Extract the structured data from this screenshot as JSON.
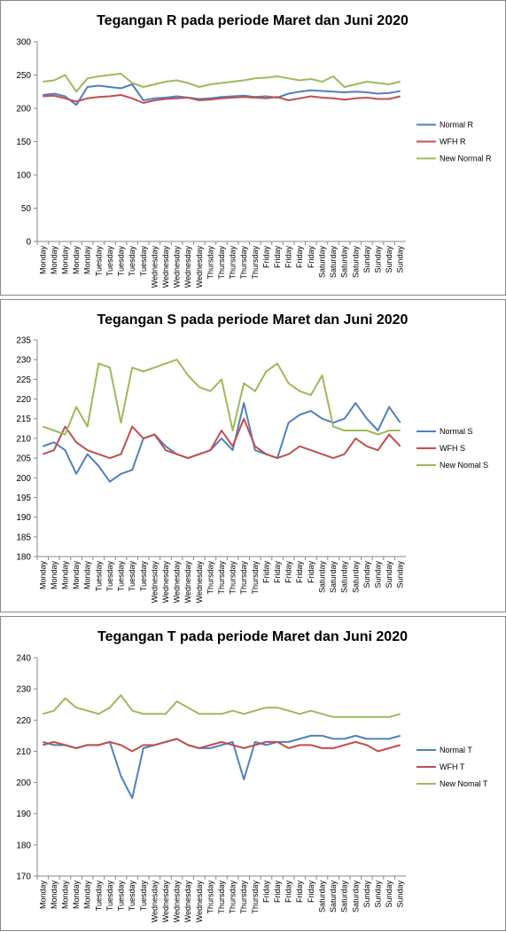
{
  "chart_data": [
    {
      "type": "line",
      "title": "Tegangan R pada periode Maret dan Juni 2020",
      "categories": [
        "Monday",
        "Monday",
        "Monday",
        "Monday",
        "Monday",
        "Tuesday",
        "Tuesday",
        "Tuesday",
        "Tuesday",
        "Tuesday",
        "Wednesday",
        "Wednesday",
        "Wednesday",
        "Wednesday",
        "Wednesday",
        "Thursday",
        "Thursday",
        "Thursday",
        "Thursday",
        "Thursday",
        "Friday",
        "Friday",
        "Friday",
        "Friday",
        "Friday",
        "Saturday",
        "Saturday",
        "Saturday",
        "Saturday",
        "Sunday",
        "Sunday",
        "Sunday",
        "Sunday"
      ],
      "series": [
        {
          "name": "Normal R",
          "color": "#4f81bd",
          "values": [
            220,
            222,
            218,
            205,
            232,
            234,
            232,
            230,
            236,
            212,
            215,
            216,
            218,
            216,
            214,
            215,
            217,
            218,
            219,
            217,
            218,
            216,
            222,
            225,
            227,
            226,
            225,
            224,
            225,
            224,
            222,
            223,
            226
          ]
        },
        {
          "name": "WFH R",
          "color": "#c0504d",
          "values": [
            218,
            219,
            215,
            210,
            215,
            217,
            218,
            220,
            215,
            208,
            212,
            214,
            215,
            216,
            212,
            213,
            215,
            216,
            217,
            216,
            215,
            217,
            212,
            215,
            218,
            216,
            215,
            213,
            215,
            216,
            214,
            214,
            218
          ]
        },
        {
          "name": "New Normal R",
          "color": "#9bbb59",
          "values": [
            240,
            242,
            250,
            225,
            245,
            248,
            250,
            252,
            238,
            232,
            236,
            240,
            242,
            238,
            232,
            236,
            238,
            240,
            242,
            245,
            246,
            248,
            245,
            242,
            244,
            240,
            248,
            232,
            236,
            240,
            238,
            236,
            240
          ]
        }
      ],
      "ylim": [
        0,
        300
      ],
      "yticks": [
        0,
        50,
        100,
        150,
        200,
        250,
        300
      ],
      "grid": false,
      "legend": "right"
    },
    {
      "type": "line",
      "title": "Tegangan S pada periode Maret dan Juni 2020",
      "categories": [
        "Monday",
        "Monday",
        "Monday",
        "Monday",
        "Monday",
        "Tuesday",
        "Tuesday",
        "Tuesday",
        "Tuesday",
        "Tuesday",
        "Wednesday",
        "Wednesday",
        "Wednesday",
        "Wednesday",
        "Wednesday",
        "Thursday",
        "Thursday",
        "Thursday",
        "Thursday",
        "Thursday",
        "Friday",
        "Friday",
        "Friday",
        "Friday",
        "Friday",
        "Saturday",
        "Saturday",
        "Saturday",
        "Saturday",
        "Sunday",
        "Sunday",
        "Sunday",
        "Sunday"
      ],
      "series": [
        {
          "name": "Normal S",
          "color": "#4f81bd",
          "values": [
            208,
            209,
            207,
            201,
            206,
            203,
            199,
            201,
            202,
            210,
            211,
            208,
            206,
            205,
            206,
            207,
            210,
            207,
            219,
            207,
            206,
            205,
            214,
            216,
            217,
            215,
            214,
            215,
            219,
            215,
            212,
            218,
            214
          ]
        },
        {
          "name": "WFH S",
          "color": "#c0504d",
          "values": [
            206,
            207,
            213,
            209,
            207,
            206,
            205,
            206,
            213,
            210,
            211,
            207,
            206,
            205,
            206,
            207,
            212,
            208,
            215,
            208,
            206,
            205,
            206,
            208,
            207,
            206,
            205,
            206,
            210,
            208,
            207,
            211,
            208
          ]
        },
        {
          "name": "New Nomal S",
          "color": "#9bbb59",
          "values": [
            213,
            212,
            211,
            218,
            213,
            229,
            228,
            214,
            228,
            227,
            228,
            229,
            230,
            226,
            223,
            222,
            225,
            212,
            224,
            222,
            227,
            229,
            224,
            222,
            221,
            226,
            213,
            212,
            212,
            212,
            211,
            212,
            212
          ]
        }
      ],
      "ylim": [
        180,
        235
      ],
      "yticks": [
        180,
        185,
        190,
        195,
        200,
        205,
        210,
        215,
        220,
        225,
        230,
        235
      ],
      "grid": false,
      "legend": "right"
    },
    {
      "type": "line",
      "title": "Tegangan T pada periode Maret dan Juni 2020",
      "categories": [
        "Monday",
        "Monday",
        "Monday",
        "Monday",
        "Monday",
        "Tuesday",
        "Tuesday",
        "Tuesday",
        "Tuesday",
        "Tuesday",
        "Wednesday",
        "Wednesday",
        "Wednesday",
        "Wednesday",
        "Wednesday",
        "Thursday",
        "Thursday",
        "Thursday",
        "Thursday",
        "Thursday",
        "Friday",
        "Friday",
        "Friday",
        "Friday",
        "Friday",
        "Saturday",
        "Saturday",
        "Saturday",
        "Saturday",
        "Sunday",
        "Sunday",
        "Sunday",
        "Sunday"
      ],
      "series": [
        {
          "name": "Normal T",
          "color": "#4f81bd",
          "values": [
            213,
            212,
            212,
            211,
            212,
            212,
            213,
            202,
            195,
            211,
            212,
            213,
            214,
            212,
            211,
            211,
            212,
            213,
            201,
            213,
            212,
            213,
            213,
            214,
            215,
            215,
            214,
            214,
            215,
            214,
            214,
            214,
            215
          ]
        },
        {
          "name": "WFH T",
          "color": "#c0504d",
          "values": [
            212,
            213,
            212,
            211,
            212,
            212,
            213,
            212,
            210,
            212,
            212,
            213,
            214,
            212,
            211,
            212,
            213,
            212,
            211,
            212,
            213,
            213,
            211,
            212,
            212,
            211,
            211,
            212,
            213,
            212,
            210,
            211,
            212
          ]
        },
        {
          "name": "New Nomal T",
          "color": "#9bbb59",
          "values": [
            222,
            223,
            227,
            224,
            223,
            222,
            224,
            228,
            223,
            222,
            222,
            222,
            226,
            224,
            222,
            222,
            222,
            223,
            222,
            223,
            224,
            224,
            223,
            222,
            223,
            222,
            221,
            221,
            221,
            221,
            221,
            221,
            222
          ]
        }
      ],
      "ylim": [
        170,
        240
      ],
      "yticks": [
        170,
        180,
        190,
        200,
        210,
        220,
        230,
        240
      ],
      "grid": false,
      "legend": "right"
    }
  ]
}
